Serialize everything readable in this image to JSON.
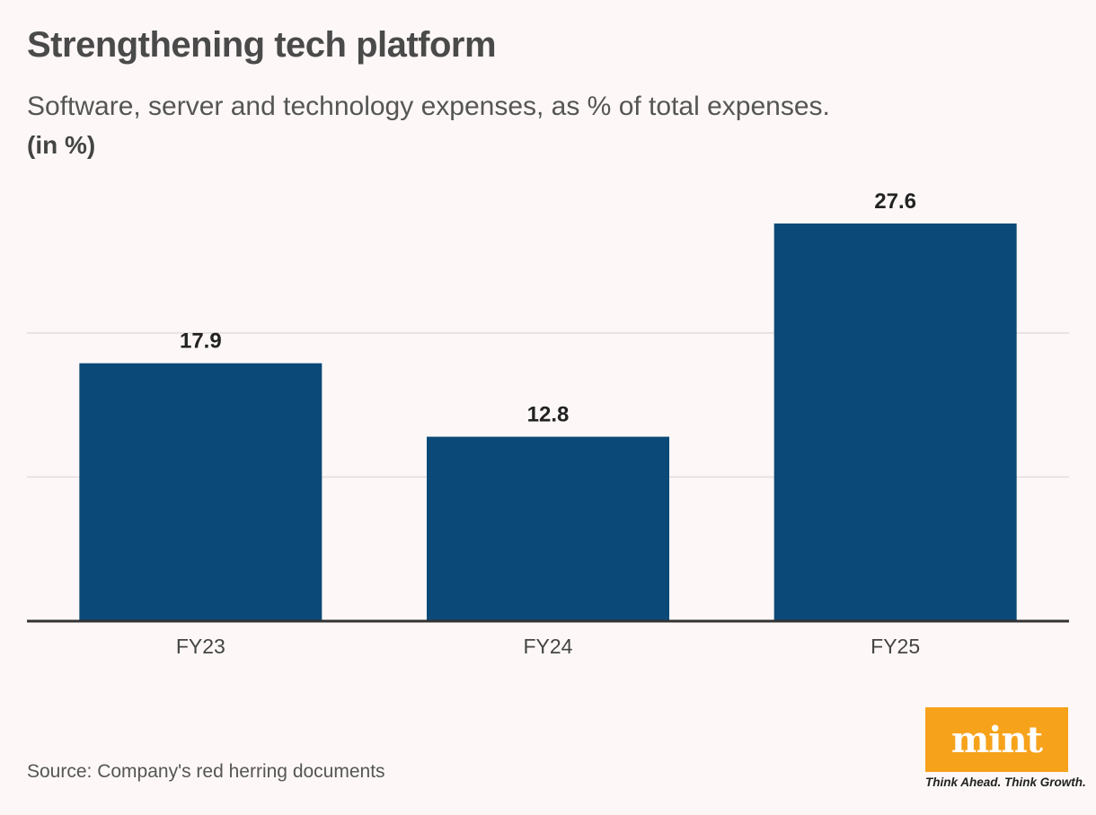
{
  "chart_data": {
    "type": "bar",
    "title": "Strengthening tech platform",
    "subtitle": "Software, server and technology expenses, as % of total expenses.",
    "unit": "(in %)",
    "categories": [
      "FY23",
      "FY24",
      "FY25"
    ],
    "values": [
      17.9,
      12.8,
      27.6
    ],
    "value_labels": [
      "17.9",
      "12.8",
      "27.6"
    ],
    "ylim": [
      0,
      30
    ],
    "gridlines": [
      10,
      20
    ],
    "grid": true,
    "bar_color": "#0b4a78"
  },
  "source": "Source: Company's red herring documents",
  "logo": {
    "text": "mint",
    "tagline": "Think Ahead. Think Growth.",
    "color": "#f7a21b"
  }
}
